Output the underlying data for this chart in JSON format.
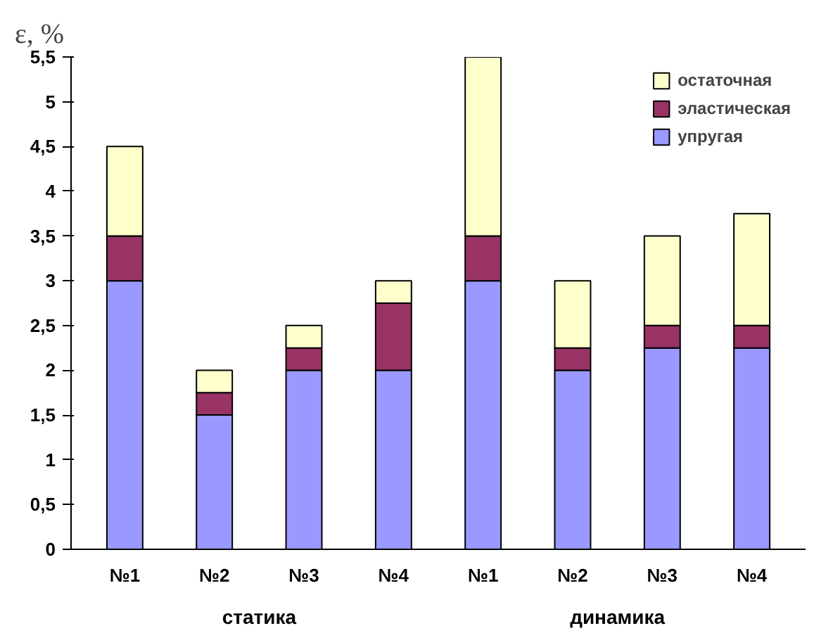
{
  "chart_data": {
    "type": "bar",
    "stacked": true,
    "ylabel": "ε, %",
    "categories": [
      "№1",
      "№2",
      "№3",
      "№4",
      "№1",
      "№2",
      "№3",
      "№4"
    ],
    "series": [
      {
        "name": "упругая",
        "color": "#9999ff",
        "values": [
          3,
          1.5,
          2,
          2,
          3,
          2,
          2.25,
          2.25
        ]
      },
      {
        "name": "эластическая",
        "color": "#993366",
        "values": [
          0.5,
          0.25,
          0.25,
          0.75,
          0.5,
          0.25,
          0.25,
          0.25
        ]
      },
      {
        "name": "остаточная",
        "color": "#ffffcc",
        "values": [
          1,
          0.25,
          0.25,
          0.25,
          2,
          0.75,
          1,
          1.25
        ]
      }
    ],
    "ylim": [
      0,
      5.5
    ],
    "yticks": [
      0,
      {
        "value": 0.5,
        "label": "0,5"
      },
      1,
      {
        "value": 1.5,
        "label": "1,5"
      },
      2,
      {
        "value": 2.5,
        "label": "2,5"
      },
      3,
      {
        "value": 3.5,
        "label": "3,5"
      },
      4,
      {
        "value": 4.5,
        "label": "4,5"
      },
      5,
      {
        "value": 5.5,
        "label": "5,5"
      }
    ],
    "grid": false,
    "legend": "top right",
    "annotations": [
      "статика",
      "динамика"
    ]
  }
}
